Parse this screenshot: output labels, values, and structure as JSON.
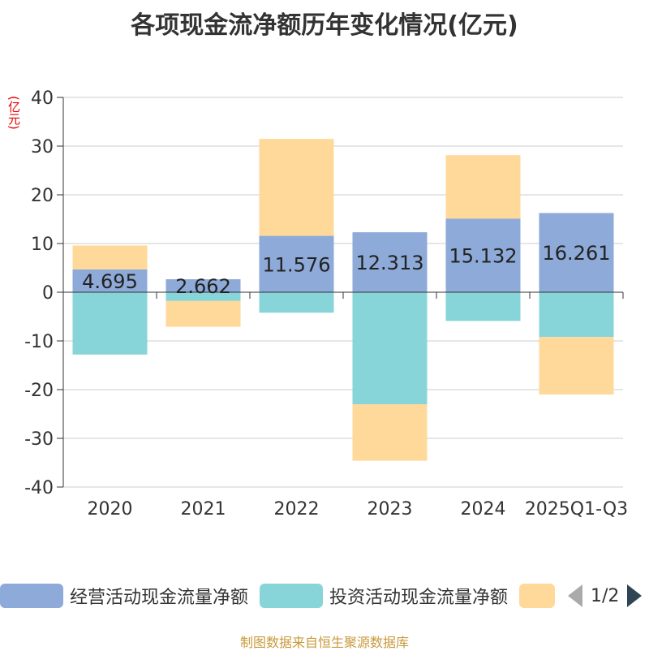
{
  "title": "各项现金流净额历年变化情况(亿元)",
  "unit_label": "(亿元)",
  "legend": {
    "items": [
      {
        "label": "经营活动现金流量净额",
        "color": "#8eaad8"
      },
      {
        "label": "投资活动现金流量净额",
        "color": "#87d5d8"
      },
      {
        "label": "",
        "color": "#ffd99a"
      }
    ],
    "page": "1/2"
  },
  "source": "制图数据来自恒生聚源数据库",
  "chart_data": {
    "type": "bar",
    "stacked": true,
    "categories": [
      "2020",
      "2021",
      "2022",
      "2023",
      "2024",
      "2025Q1-Q3"
    ],
    "series": [
      {
        "name": "经营活动现金流量净额",
        "color": "#8eaad8",
        "values": [
          4.695,
          2.662,
          11.576,
          12.313,
          15.132,
          16.261
        ]
      },
      {
        "name": "投资活动现金流量净额",
        "color": "#87d5d8",
        "values": [
          -12.8,
          -1.8,
          -4.2,
          -23.0,
          -5.9,
          -9.2
        ]
      },
      {
        "name": "",
        "color": "#ffd99a",
        "values": [
          4.9,
          -5.3,
          19.9,
          -11.6,
          13.0,
          -11.8
        ]
      }
    ],
    "data_labels": [
      "4.695",
      "2.662",
      "11.576",
      "12.313",
      "15.132",
      "16.261"
    ],
    "ylim": [
      -40,
      40
    ],
    "yticks": [
      40,
      30,
      20,
      10,
      0,
      -10,
      -20,
      -30,
      -40
    ],
    "grid": true,
    "xlabel": "",
    "ylabel": "(亿元)"
  }
}
